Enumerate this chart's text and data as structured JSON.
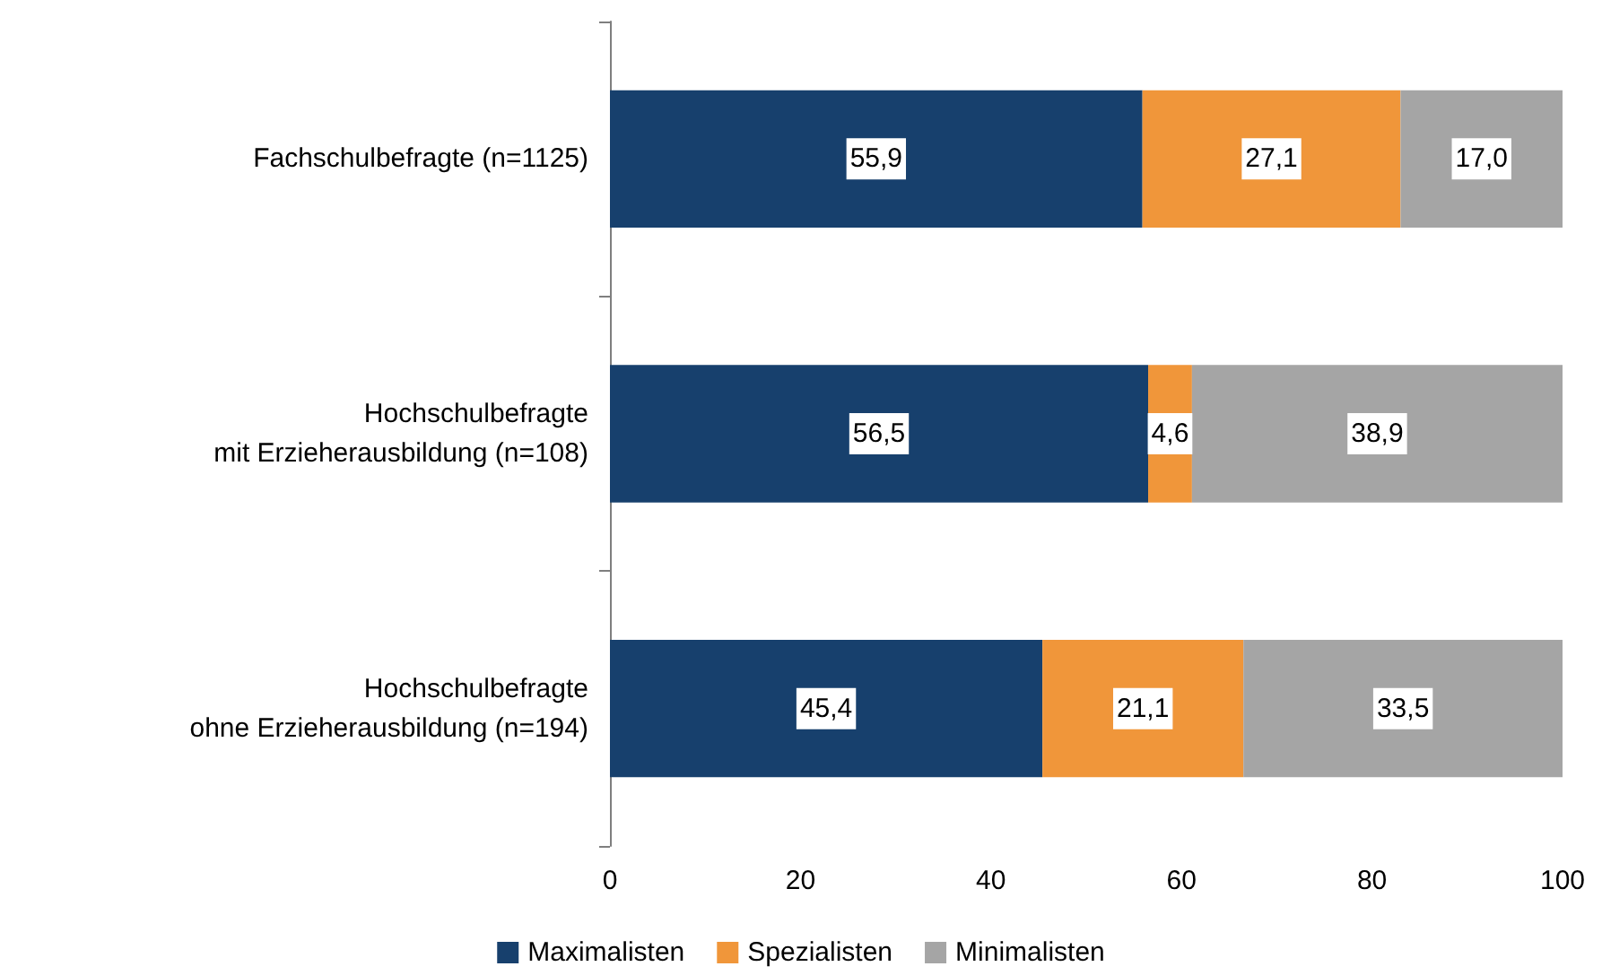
{
  "chart_data": {
    "type": "bar",
    "orientation": "horizontal",
    "stacked": true,
    "categories": [
      "Fachschulbefragte (n=1125)",
      "Hochschulbefragte\nmit Erzieherausbildung (n=108)",
      "Hochschulbefragte\nohne Erzieherausbildung (n=194)"
    ],
    "series": [
      {
        "name": "Maximalisten",
        "color": "#17406d",
        "values": [
          55.9,
          56.5,
          45.4
        ],
        "value_labels": [
          "55,9",
          "56,5",
          "45,4"
        ]
      },
      {
        "name": "Spezialisten",
        "color": "#f0963a",
        "values": [
          27.1,
          4.6,
          21.1
        ],
        "value_labels": [
          "27,1",
          "4,6",
          "21,1"
        ]
      },
      {
        "name": "Minimalisten",
        "color": "#a5a5a5",
        "values": [
          17.0,
          38.9,
          33.5
        ],
        "value_labels": [
          "17,0",
          "38,9",
          "33,5"
        ]
      }
    ],
    "xlim": [
      0,
      100
    ],
    "xticks": [
      0,
      20,
      40,
      60,
      80,
      100
    ],
    "grid": false,
    "legend": "bottom"
  }
}
